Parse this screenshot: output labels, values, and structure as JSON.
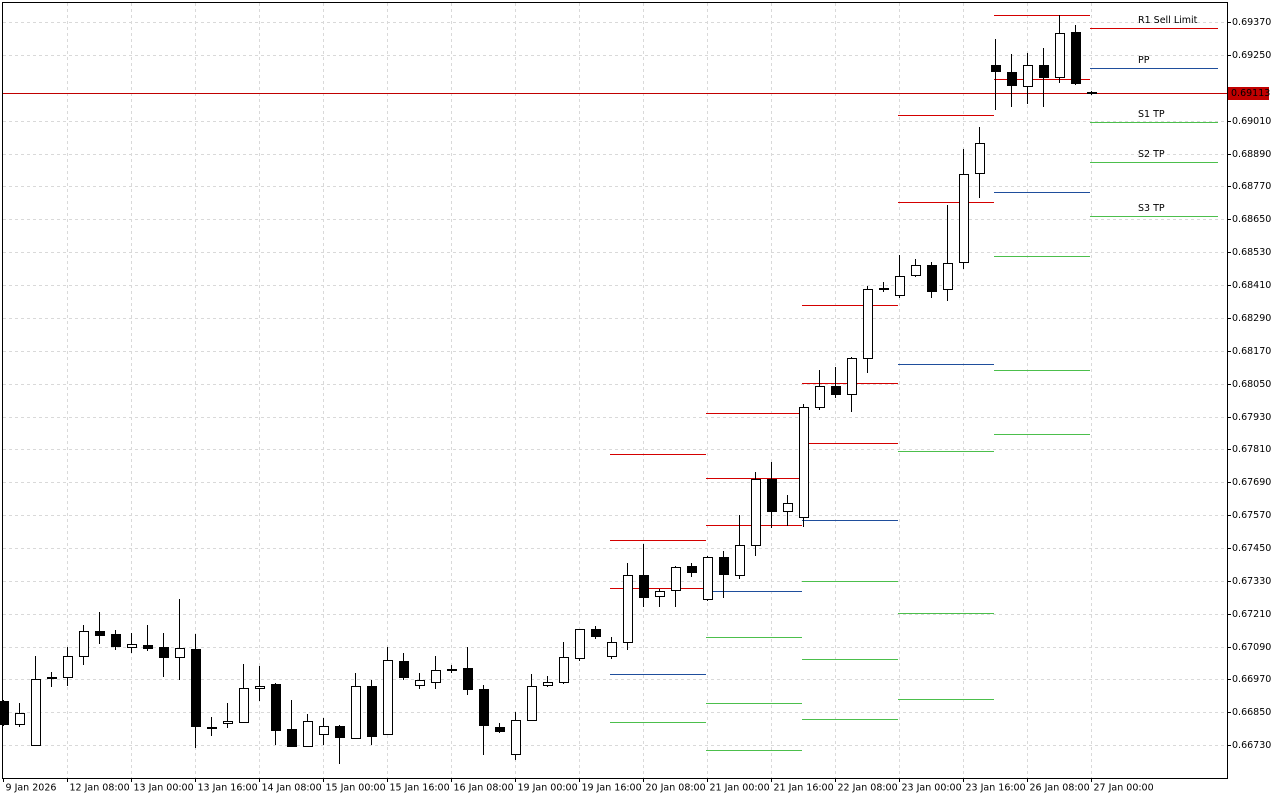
{
  "chart_data": {
    "type": "candlestick",
    "categories": [
      "9 Jan 2026",
      null,
      null,
      null,
      "12 Jan 08:00",
      null,
      null,
      null,
      "13 Jan 00:00",
      null,
      null,
      null,
      "13 Jan 16:00",
      null,
      null,
      null,
      "14 Jan 08:00",
      null,
      null,
      null,
      "15 Jan 00:00",
      null,
      null,
      null,
      "15 Jan 16:00",
      null,
      null,
      null,
      "16 Jan 08:00",
      null,
      null,
      null,
      "19 Jan 00:00",
      null,
      null,
      null,
      "19 Jan 16:00",
      null,
      null,
      null,
      "20 Jan 08:00",
      null,
      null,
      null,
      "21 Jan 00:00",
      null,
      null,
      null,
      "21 Jan 16:00",
      null,
      null,
      null,
      "22 Jan 08:00",
      null,
      null,
      null,
      "23 Jan 00:00",
      null,
      null,
      null,
      "23 Jan 16:00",
      null,
      null,
      null,
      "26 Jan 08:00",
      null,
      null,
      null,
      "27 Jan 00:00"
    ],
    "open": [
      0.66891,
      0.66807,
      0.6673,
      0.66975,
      0.66979,
      0.67056,
      0.67147,
      0.67136,
      0.67088,
      0.67096,
      0.67088,
      0.67052,
      0.67081,
      0.66796,
      0.66811,
      0.66814,
      0.66938,
      0.66953,
      0.66789,
      0.66726,
      0.6677,
      0.668,
      0.66756,
      0.66946,
      0.6677,
      0.67037,
      0.66949,
      0.6696,
      0.67008,
      0.67012,
      0.66935,
      0.66796,
      0.66697,
      0.66821,
      0.66949,
      0.6696,
      0.67048,
      0.67154,
      0.67056,
      0.67107,
      0.67352,
      0.67275,
      0.67297,
      0.67385,
      0.67264,
      0.67418,
      0.67352,
      0.67461,
      0.67703,
      0.67586,
      0.67564,
      0.67966,
      0.68043,
      0.68014,
      0.68142,
      0.68394,
      0.68372,
      0.68445,
      0.68482,
      0.68394,
      0.68493,
      0.68818,
      0.69213,
      0.69188,
      0.69136,
      0.69213,
      0.69169,
      0.69334,
      0.69115
    ],
    "high": [
      0.66895,
      0.66884,
      0.67056,
      0.66997,
      0.67088,
      0.67169,
      0.67216,
      0.67151,
      0.6714,
      0.67169,
      0.6714,
      0.67264,
      0.67136,
      0.66832,
      0.66884,
      0.67026,
      0.67019,
      0.66957,
      0.66895,
      0.66843,
      0.66829,
      0.66803,
      0.66993,
      0.66968,
      0.67088,
      0.67066,
      0.66993,
      0.67056,
      0.67023,
      0.67088,
      0.66949,
      0.66811,
      0.66851,
      0.6699,
      0.66982,
      0.67107,
      0.67154,
      0.67165,
      0.67125,
      0.67396,
      0.67465,
      0.673,
      0.67385,
      0.67396,
      0.67421,
      0.6744,
      0.67571,
      0.67728,
      0.67765,
      0.67644,
      0.67977,
      0.68101,
      0.68109,
      0.68149,
      0.68405,
      0.68423,
      0.68518,
      0.68507,
      0.68496,
      0.68701,
      0.68906,
      0.68986,
      0.69308,
      0.69253,
      0.69257,
      0.69275,
      0.69396,
      0.69359,
      0.69118
    ],
    "low": [
      0.66803,
      0.668,
      0.6673,
      0.66946,
      0.66949,
      0.67026,
      0.67103,
      0.67081,
      0.6707,
      0.67077,
      0.66982,
      0.66971,
      0.66723,
      0.66767,
      0.66796,
      0.66814,
      0.66895,
      0.66734,
      0.66726,
      0.66726,
      0.66734,
      0.66664,
      0.66756,
      0.66734,
      0.6677,
      0.66971,
      0.66938,
      0.66938,
      0.66997,
      0.66917,
      0.66697,
      0.66778,
      0.66679,
      0.66821,
      0.66946,
      0.66957,
      0.67041,
      0.67121,
      0.67048,
      0.67081,
      0.67238,
      0.67238,
      0.67238,
      0.67348,
      0.6726,
      0.67271,
      0.67341,
      0.67425,
      0.67527,
      0.67535,
      0.67531,
      0.67959,
      0.68003,
      0.67951,
      0.68094,
      0.68387,
      0.68368,
      0.68442,
      0.68368,
      0.68354,
      0.68474,
      0.6873,
      0.69052,
      0.69065,
      0.69074,
      0.69063,
      0.69151,
      0.69144,
      0.69107
    ],
    "close": [
      0.66807,
      0.66847,
      0.66971,
      0.66979,
      0.67056,
      0.67147,
      0.67132,
      0.67092,
      0.67099,
      0.67085,
      0.67052,
      0.67085,
      0.668,
      0.66792,
      0.66818,
      0.66938,
      0.66946,
      0.66785,
      0.66726,
      0.66818,
      0.668,
      0.66759,
      0.66946,
      0.66763,
      0.67041,
      0.66979,
      0.66968,
      0.67004,
      0.67004,
      0.66935,
      0.66803,
      0.66781,
      0.66821,
      0.66946,
      0.6696,
      0.67052,
      0.67154,
      0.67129,
      0.67107,
      0.67352,
      0.67271,
      0.67293,
      0.67381,
      0.67363,
      0.67418,
      0.67355,
      0.67461,
      0.67703,
      0.67586,
      0.67615,
      0.67966,
      0.68043,
      0.68014,
      0.68142,
      0.68394,
      0.68398,
      0.68442,
      0.68482,
      0.68387,
      0.68489,
      0.68815,
      0.68928,
      0.69191,
      0.6914,
      0.69213,
      0.69169,
      0.6933,
      0.69147,
      0.69113
    ],
    "levels": [
      {
        "color": "#d40000",
        "values": [
          0.67794,
          0.67944,
          0.68339,
          null,
          null,
          null
        ]
      },
      {
        "color": "#d40000",
        "values": [
          0.6748,
          0.67706,
          0.68054,
          0.6903,
          0.69396,
          null
        ]
      },
      {
        "name": "R1 Sell Limit",
        "color": "#d40000",
        "values": [
          0.67304,
          0.67535,
          0.67834,
          0.68712,
          0.69162,
          0.69348
        ]
      },
      {
        "name": "PP",
        "color": "#1f4e9c",
        "values": [
          0.6699,
          0.67293,
          0.67553,
          0.68123,
          0.68749,
          0.69202
        ]
      },
      {
        "name": "S1 TP",
        "color": "#4cbf4c",
        "values": [
          0.66814,
          0.67125,
          0.6733,
          0.67805,
          0.68515,
          0.69005
        ]
      },
      {
        "name": "S2 TP",
        "color": "#4cbf4c",
        "values": [
          null,
          0.66884,
          0.67045,
          0.67213,
          0.68101,
          0.68858
        ]
      },
      {
        "name": "S3 TP",
        "color": "#4cbf4c",
        "values": [
          null,
          0.66712,
          0.66825,
          0.66898,
          0.67867,
          0.68661
        ]
      }
    ],
    "current_price": 0.69113,
    "current_price_color": "#c00000",
    "ylim": [
      0.6661,
      0.6944
    ],
    "yticks": [
      {
        "value": 0.6673,
        "label": "0.66730"
      },
      {
        "value": 0.6685,
        "label": "0.66850"
      },
      {
        "value": 0.6697,
        "label": "0.66970"
      },
      {
        "value": 0.6709,
        "label": "0.67090"
      },
      {
        "value": 0.6721,
        "label": "0.67210"
      },
      {
        "value": 0.6733,
        "label": "0.67330"
      },
      {
        "value": 0.6745,
        "label": "0.67450"
      },
      {
        "value": 0.6757,
        "label": "0.67570"
      },
      {
        "value": 0.6769,
        "label": "0.67690"
      },
      {
        "value": 0.6781,
        "label": "0.67810"
      },
      {
        "value": 0.6793,
        "label": "0.67930"
      },
      {
        "value": 0.6805,
        "label": "0.68050"
      },
      {
        "value": 0.6817,
        "label": "0.68170"
      },
      {
        "value": 0.6829,
        "label": "0.68290"
      },
      {
        "value": 0.6841,
        "label": "0.68410"
      },
      {
        "value": 0.6853,
        "label": "0.68530"
      },
      {
        "value": 0.6865,
        "label": "0.68650"
      },
      {
        "value": 0.6877,
        "label": "0.68770"
      },
      {
        "value": 0.6889,
        "label": "0.68890"
      },
      {
        "value": 0.6901,
        "label": "0.69010"
      },
      {
        "value": 0.6925,
        "label": "0.69250"
      },
      {
        "value": 0.6937,
        "label": "0.69370"
      }
    ],
    "grid": true
  }
}
